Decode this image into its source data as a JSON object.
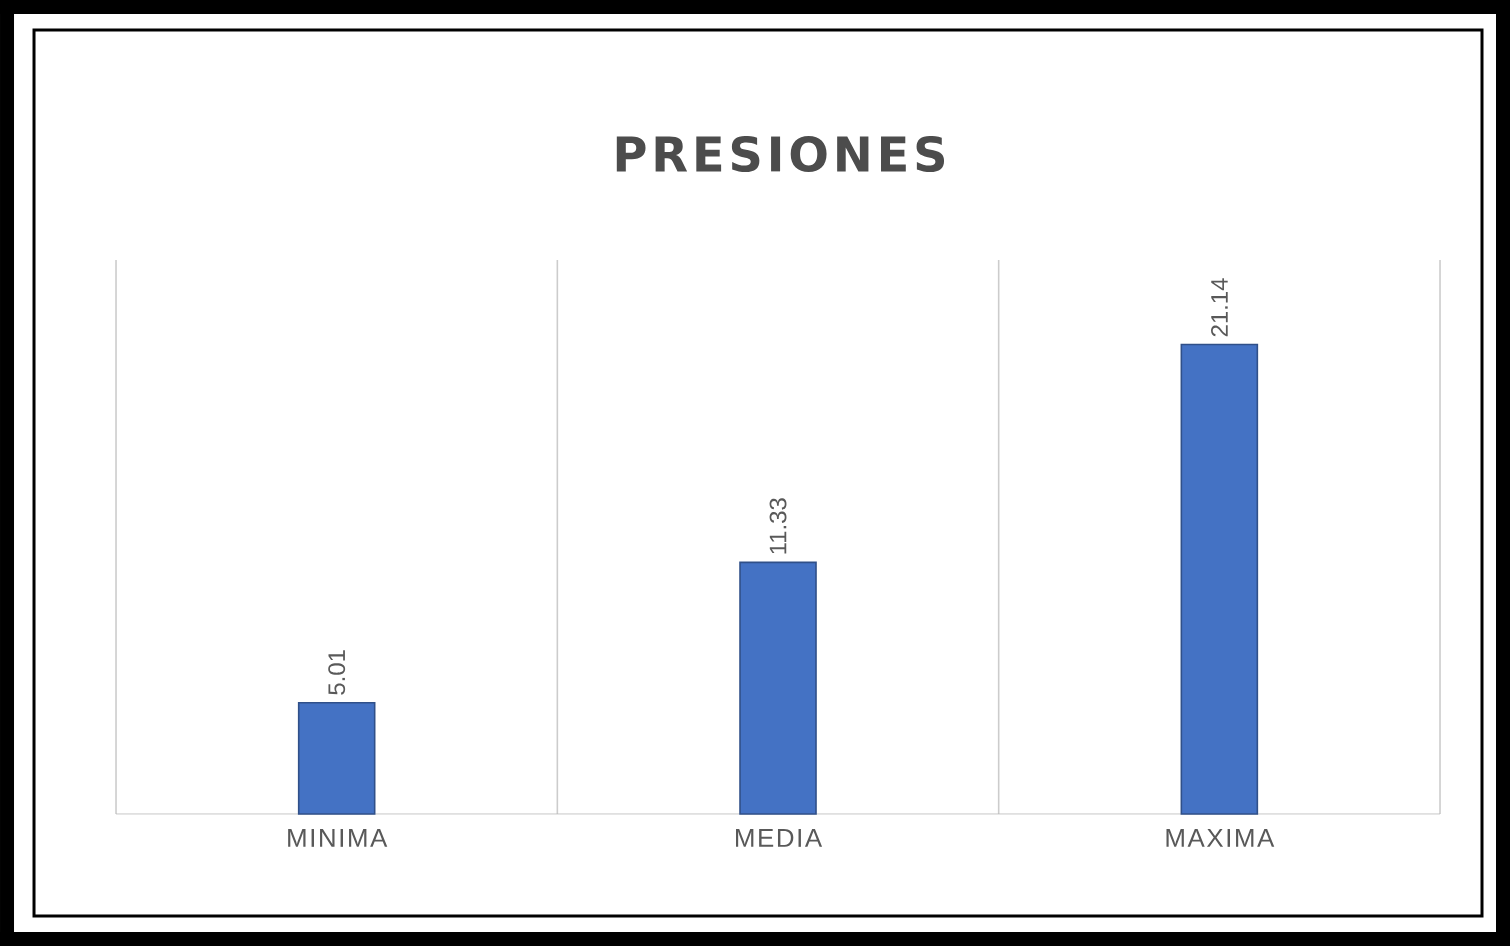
{
  "chart_data": {
    "type": "bar",
    "title": "PRESIONES",
    "categories": [
      "MINIMA",
      "MEDIA",
      "MAXIMA"
    ],
    "values": [
      5.01,
      11.33,
      21.14
    ],
    "color": "#4472c4",
    "data_labels": true,
    "grid": "x"
  }
}
